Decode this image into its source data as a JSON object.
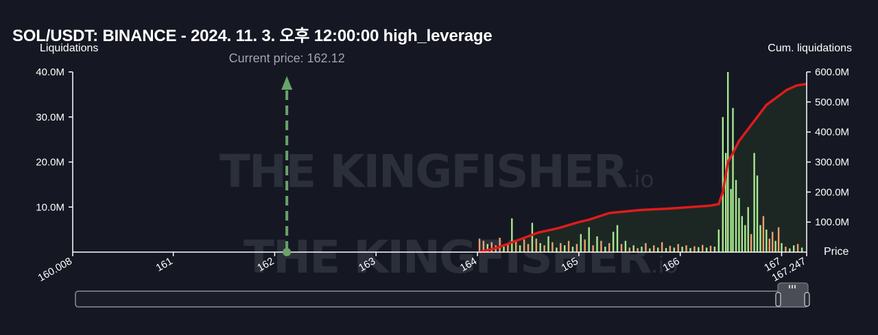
{
  "title": "SOL/USDT: BINANCE - 2024. 11. 3. 오후 12:00:00 high_leverage",
  "left_axis_title": "Liquidations",
  "right_axis_title": "Cum. liquidations",
  "x_axis_title": "Price",
  "watermark": {
    "text": "THE KINGFISHER",
    "suffix": ".io"
  },
  "colors": {
    "background": "#151823",
    "current_price_line": "#6aa36a",
    "cum_line": "#e01b1b",
    "cum_fill": "#1d2a24",
    "bar_green": "#a8e890",
    "bar_orange": "#f0a070"
  },
  "chart_data": {
    "type": "bar",
    "xlim": [
      160.008,
      167.247
    ],
    "x_ticks": [
      {
        "value": 160.008,
        "label": "160.008"
      },
      {
        "value": 161,
        "label": "161"
      },
      {
        "value": 162,
        "label": "162"
      },
      {
        "value": 163,
        "label": "163"
      },
      {
        "value": 164,
        "label": "164"
      },
      {
        "value": 165,
        "label": "165"
      },
      {
        "value": 166,
        "label": "166"
      },
      {
        "value": 167,
        "label": "167"
      },
      {
        "value": 167.247,
        "label": "167.247"
      }
    ],
    "ylim_left": [
      0,
      40000000
    ],
    "y_ticks_left": [
      {
        "value": 10000000,
        "label": "10.0M"
      },
      {
        "value": 20000000,
        "label": "20.0M"
      },
      {
        "value": 30000000,
        "label": "30.0M"
      },
      {
        "value": 40000000,
        "label": "40.0M"
      }
    ],
    "ylim_right": [
      0,
      600000000
    ],
    "y_ticks_right": [
      {
        "value": 100000000,
        "label": "100.0M"
      },
      {
        "value": 200000000,
        "label": "200.0M"
      },
      {
        "value": 300000000,
        "label": "300.0M"
      },
      {
        "value": 400000000,
        "label": "400.0M"
      },
      {
        "value": 500000000,
        "label": "500.0M"
      },
      {
        "value": 600000000,
        "label": "600.0M"
      }
    ],
    "current_price": {
      "value": 162.12,
      "label": "Current price: 162.12"
    },
    "series": [
      {
        "type": "bar",
        "bars": [
          {
            "x": 164.02,
            "y": 3000000,
            "c": "orange"
          },
          {
            "x": 164.06,
            "y": 2500000,
            "c": "orange"
          },
          {
            "x": 164.1,
            "y": 1800000,
            "c": "green"
          },
          {
            "x": 164.14,
            "y": 2200000,
            "c": "orange"
          },
          {
            "x": 164.18,
            "y": 1500000,
            "c": "orange"
          },
          {
            "x": 164.22,
            "y": 3200000,
            "c": "orange"
          },
          {
            "x": 164.26,
            "y": 1200000,
            "c": "green"
          },
          {
            "x": 164.3,
            "y": 2000000,
            "c": "orange"
          },
          {
            "x": 164.34,
            "y": 7500000,
            "c": "green"
          },
          {
            "x": 164.38,
            "y": 2500000,
            "c": "orange"
          },
          {
            "x": 164.42,
            "y": 1500000,
            "c": "green"
          },
          {
            "x": 164.46,
            "y": 2800000,
            "c": "orange"
          },
          {
            "x": 164.5,
            "y": 1800000,
            "c": "orange"
          },
          {
            "x": 164.54,
            "y": 6500000,
            "c": "green"
          },
          {
            "x": 164.58,
            "y": 3000000,
            "c": "orange"
          },
          {
            "x": 164.62,
            "y": 2000000,
            "c": "green"
          },
          {
            "x": 164.66,
            "y": 1500000,
            "c": "orange"
          },
          {
            "x": 164.7,
            "y": 3500000,
            "c": "green"
          },
          {
            "x": 164.74,
            "y": 2200000,
            "c": "orange"
          },
          {
            "x": 164.78,
            "y": 1000000,
            "c": "green"
          },
          {
            "x": 164.82,
            "y": 2000000,
            "c": "orange"
          },
          {
            "x": 164.86,
            "y": 1500000,
            "c": "green"
          },
          {
            "x": 164.9,
            "y": 2500000,
            "c": "orange"
          },
          {
            "x": 164.94,
            "y": 1200000,
            "c": "green"
          },
          {
            "x": 164.98,
            "y": 1800000,
            "c": "orange"
          },
          {
            "x": 165.02,
            "y": 4000000,
            "c": "green"
          },
          {
            "x": 165.06,
            "y": 2800000,
            "c": "orange"
          },
          {
            "x": 165.1,
            "y": 5500000,
            "c": "green"
          },
          {
            "x": 165.14,
            "y": 1500000,
            "c": "orange"
          },
          {
            "x": 165.18,
            "y": 3500000,
            "c": "green"
          },
          {
            "x": 165.22,
            "y": 2500000,
            "c": "orange"
          },
          {
            "x": 165.26,
            "y": 1200000,
            "c": "green"
          },
          {
            "x": 165.3,
            "y": 2000000,
            "c": "orange"
          },
          {
            "x": 165.34,
            "y": 4500000,
            "c": "green"
          },
          {
            "x": 165.38,
            "y": 6000000,
            "c": "green"
          },
          {
            "x": 165.42,
            "y": 1800000,
            "c": "orange"
          },
          {
            "x": 165.46,
            "y": 2500000,
            "c": "green"
          },
          {
            "x": 165.5,
            "y": 1000000,
            "c": "orange"
          },
          {
            "x": 165.54,
            "y": 1500000,
            "c": "green"
          },
          {
            "x": 165.58,
            "y": 900000,
            "c": "orange"
          },
          {
            "x": 165.62,
            "y": 1200000,
            "c": "green"
          },
          {
            "x": 165.66,
            "y": 2000000,
            "c": "orange"
          },
          {
            "x": 165.7,
            "y": 800000,
            "c": "green"
          },
          {
            "x": 165.74,
            "y": 1500000,
            "c": "orange"
          },
          {
            "x": 165.78,
            "y": 1000000,
            "c": "green"
          },
          {
            "x": 165.82,
            "y": 2200000,
            "c": "orange"
          },
          {
            "x": 165.86,
            "y": 900000,
            "c": "green"
          },
          {
            "x": 165.9,
            "y": 1400000,
            "c": "orange"
          },
          {
            "x": 165.94,
            "y": 1000000,
            "c": "green"
          },
          {
            "x": 165.98,
            "y": 1800000,
            "c": "orange"
          },
          {
            "x": 166.02,
            "y": 1200000,
            "c": "green"
          },
          {
            "x": 166.06,
            "y": 1500000,
            "c": "orange"
          },
          {
            "x": 166.1,
            "y": 900000,
            "c": "green"
          },
          {
            "x": 166.14,
            "y": 1300000,
            "c": "orange"
          },
          {
            "x": 166.18,
            "y": 1100000,
            "c": "green"
          },
          {
            "x": 166.22,
            "y": 1600000,
            "c": "orange"
          },
          {
            "x": 166.26,
            "y": 1000000,
            "c": "green"
          },
          {
            "x": 166.3,
            "y": 1400000,
            "c": "orange"
          },
          {
            "x": 166.34,
            "y": 1200000,
            "c": "green"
          },
          {
            "x": 166.38,
            "y": 5000000,
            "c": "green"
          },
          {
            "x": 166.42,
            "y": 30000000,
            "c": "green"
          },
          {
            "x": 166.45,
            "y": 22000000,
            "c": "green"
          },
          {
            "x": 166.47,
            "y": 40000000,
            "c": "green"
          },
          {
            "x": 166.5,
            "y": 14000000,
            "c": "green"
          },
          {
            "x": 166.52,
            "y": 32000000,
            "c": "green"
          },
          {
            "x": 166.55,
            "y": 16000000,
            "c": "green"
          },
          {
            "x": 166.58,
            "y": 12000000,
            "c": "green"
          },
          {
            "x": 166.61,
            "y": 8000000,
            "c": "green"
          },
          {
            "x": 166.64,
            "y": 6000000,
            "c": "green"
          },
          {
            "x": 166.67,
            "y": 10000000,
            "c": "green"
          },
          {
            "x": 166.7,
            "y": 4000000,
            "c": "orange"
          },
          {
            "x": 166.73,
            "y": 22000000,
            "c": "green"
          },
          {
            "x": 166.76,
            "y": 17000000,
            "c": "green"
          },
          {
            "x": 166.79,
            "y": 6000000,
            "c": "green"
          },
          {
            "x": 166.82,
            "y": 8000000,
            "c": "orange"
          },
          {
            "x": 166.85,
            "y": 5000000,
            "c": "green"
          },
          {
            "x": 166.88,
            "y": 3000000,
            "c": "orange"
          },
          {
            "x": 166.91,
            "y": 4500000,
            "c": "orange"
          },
          {
            "x": 166.94,
            "y": 2500000,
            "c": "green"
          },
          {
            "x": 166.97,
            "y": 5500000,
            "c": "orange"
          },
          {
            "x": 167.0,
            "y": 2000000,
            "c": "green"
          },
          {
            "x": 167.04,
            "y": 1200000,
            "c": "orange"
          },
          {
            "x": 167.08,
            "y": 800000,
            "c": "green"
          },
          {
            "x": 167.12,
            "y": 1500000,
            "c": "green"
          },
          {
            "x": 167.16,
            "y": 1800000,
            "c": "orange"
          },
          {
            "x": 167.2,
            "y": 1000000,
            "c": "green"
          }
        ]
      },
      {
        "type": "area",
        "axis": "right",
        "points": [
          [
            164.02,
            0
          ],
          [
            164.2,
            15000000
          ],
          [
            164.4,
            40000000
          ],
          [
            164.6,
            65000000
          ],
          [
            164.8,
            80000000
          ],
          [
            165.0,
            100000000
          ],
          [
            165.1,
            108000000
          ],
          [
            165.3,
            130000000
          ],
          [
            165.6,
            140000000
          ],
          [
            165.9,
            145000000
          ],
          [
            166.1,
            150000000
          ],
          [
            166.3,
            155000000
          ],
          [
            166.38,
            160000000
          ],
          [
            166.42,
            200000000
          ],
          [
            166.47,
            300000000
          ],
          [
            166.52,
            330000000
          ],
          [
            166.58,
            370000000
          ],
          [
            166.67,
            410000000
          ],
          [
            166.76,
            450000000
          ],
          [
            166.85,
            490000000
          ],
          [
            166.97,
            520000000
          ],
          [
            167.05,
            540000000
          ],
          [
            167.15,
            555000000
          ],
          [
            167.247,
            560000000
          ]
        ]
      }
    ],
    "grid": false,
    "legend": "none"
  }
}
